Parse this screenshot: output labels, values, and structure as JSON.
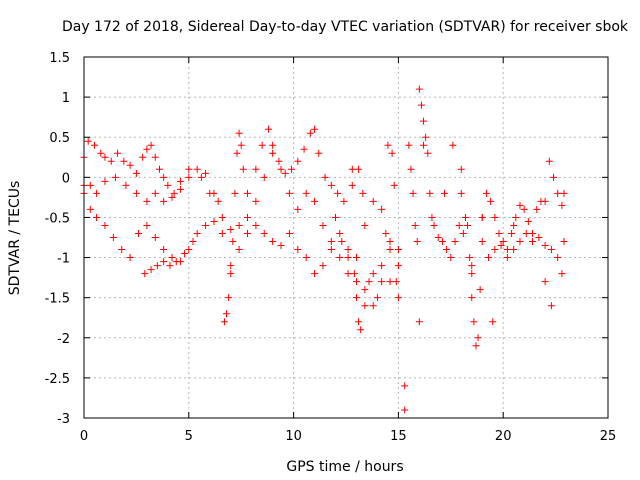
{
  "chart_data": {
    "type": "scatter",
    "title": "Day 172 of 2018, Sidereal Day-to-day VTEC variation (SDTVAR) for receiver sbok",
    "xlabel": "GPS time / hours",
    "ylabel": "SDTVAR / TECUs",
    "xlim": [
      0,
      25
    ],
    "ylim": [
      -3,
      1.5
    ],
    "xticks": [
      0,
      5,
      10,
      15,
      20,
      25
    ],
    "xtick_labels": [
      "0",
      "5",
      "10",
      "15",
      "20",
      "25"
    ],
    "yticks": [
      -3,
      -2.5,
      -2,
      -1.5,
      -1,
      -0.5,
      0,
      0.5,
      1,
      1.5
    ],
    "ytick_labels": [
      "-3",
      "-2.5",
      "-2",
      "-1.5",
      "-1",
      "-0.5",
      "0",
      "0.5",
      "1",
      "1.5"
    ],
    "grid": true,
    "marker": "+",
    "color": "#ff0000",
    "series": [
      {
        "name": "upper track",
        "points": [
          [
            0.0,
            0.25
          ],
          [
            0.2,
            0.45
          ],
          [
            0.5,
            0.4
          ],
          [
            0.8,
            0.3
          ],
          [
            1.0,
            0.25
          ],
          [
            1.3,
            0.2
          ],
          [
            1.6,
            0.3
          ],
          [
            1.9,
            0.2
          ],
          [
            2.2,
            0.15
          ],
          [
            2.5,
            0.05
          ],
          [
            2.8,
            0.25
          ],
          [
            3.0,
            0.35
          ],
          [
            3.2,
            0.4
          ],
          [
            3.4,
            0.25
          ],
          [
            3.6,
            0.1
          ],
          [
            3.8,
            0.0
          ],
          [
            4.0,
            -0.1
          ],
          [
            4.3,
            -0.2
          ],
          [
            4.6,
            -0.05
          ],
          [
            5.0,
            0.1
          ]
        ]
      },
      {
        "name": "middle track",
        "points": [
          [
            0.0,
            -0.2
          ],
          [
            0.3,
            -0.1
          ],
          [
            0.6,
            -0.2
          ],
          [
            1.0,
            -0.05
          ],
          [
            1.5,
            0.0
          ],
          [
            2.0,
            -0.1
          ],
          [
            2.5,
            -0.2
          ],
          [
            3.0,
            -0.3
          ],
          [
            3.4,
            -0.2
          ],
          [
            3.8,
            -0.3
          ],
          [
            4.2,
            -0.25
          ],
          [
            4.6,
            -0.15
          ],
          [
            5.0,
            0.0
          ],
          [
            5.4,
            0.1
          ],
          [
            5.8,
            0.05
          ],
          [
            6.2,
            -0.2
          ],
          [
            6.6,
            -0.5
          ],
          [
            7.0,
            -0.65
          ],
          [
            7.4,
            -0.6
          ],
          [
            7.8,
            -0.5
          ],
          [
            8.2,
            -0.3
          ],
          [
            8.6,
            0.0
          ],
          [
            9.0,
            0.3
          ],
          [
            9.4,
            0.1
          ],
          [
            9.8,
            -0.2
          ],
          [
            10.2,
            -0.4
          ],
          [
            10.6,
            -0.2
          ],
          [
            11.0,
            -0.3
          ],
          [
            11.4,
            -0.6
          ],
          [
            11.8,
            -0.8
          ],
          [
            12.2,
            -0.7
          ],
          [
            12.6,
            -0.9
          ],
          [
            13.0,
            -1.0
          ],
          [
            13.4,
            -0.6
          ],
          [
            13.8,
            -0.3
          ],
          [
            14.2,
            -0.4
          ],
          [
            14.6,
            -0.8
          ],
          [
            15.0,
            -0.9
          ]
        ]
      },
      {
        "name": "lower track",
        "points": [
          [
            0.0,
            -0.1
          ],
          [
            0.3,
            -0.4
          ],
          [
            0.6,
            -0.5
          ],
          [
            1.0,
            -0.6
          ],
          [
            1.4,
            -0.75
          ],
          [
            1.8,
            -0.9
          ],
          [
            2.2,
            -1.0
          ],
          [
            2.6,
            -0.7
          ],
          [
            3.0,
            -0.6
          ],
          [
            3.4,
            -0.75
          ],
          [
            3.8,
            -0.9
          ],
          [
            4.2,
            -1.0
          ],
          [
            4.6,
            -1.05
          ],
          [
            5.0,
            -0.9
          ],
          [
            5.4,
            -0.7
          ],
          [
            5.8,
            -0.6
          ],
          [
            6.2,
            -0.55
          ],
          [
            6.6,
            -0.7
          ],
          [
            7.0,
            -1.1
          ],
          [
            7.4,
            -0.9
          ],
          [
            7.8,
            -0.7
          ],
          [
            8.2,
            -0.6
          ],
          [
            8.6,
            -0.7
          ],
          [
            9.0,
            -0.8
          ],
          [
            9.4,
            -0.85
          ],
          [
            9.8,
            -0.7
          ],
          [
            10.2,
            -0.9
          ],
          [
            10.6,
            -1.0
          ],
          [
            11.0,
            -1.2
          ],
          [
            11.4,
            -1.1
          ],
          [
            11.8,
            -0.9
          ],
          [
            12.2,
            -1.0
          ],
          [
            12.6,
            -1.2
          ],
          [
            13.0,
            -1.3
          ],
          [
            13.4,
            -1.4
          ],
          [
            13.8,
            -1.2
          ],
          [
            14.2,
            -1.3
          ],
          [
            14.6,
            -1.3
          ],
          [
            15.0,
            -1.1
          ]
        ]
      },
      {
        "name": "segment 3h-5h lower",
        "points": [
          [
            2.9,
            -1.2
          ],
          [
            3.2,
            -1.15
          ],
          [
            3.5,
            -1.1
          ],
          [
            3.8,
            -1.05
          ],
          [
            4.1,
            -1.1
          ],
          [
            4.4,
            -1.05
          ],
          [
            4.8,
            -0.95
          ],
          [
            5.2,
            -0.8
          ]
        ]
      },
      {
        "name": "segment 7h excursion",
        "points": [
          [
            6.7,
            -1.8
          ],
          [
            6.8,
            -1.7
          ],
          [
            6.9,
            -1.5
          ],
          [
            7.0,
            -1.2
          ],
          [
            7.1,
            -0.8
          ],
          [
            7.2,
            -0.2
          ],
          [
            7.3,
            0.3
          ],
          [
            7.4,
            0.55
          ],
          [
            7.5,
            0.4
          ],
          [
            7.6,
            0.1
          ]
        ]
      },
      {
        "name": "segment 8-11h upper",
        "points": [
          [
            5.6,
            0.0
          ],
          [
            6.0,
            -0.2
          ],
          [
            6.4,
            -0.3
          ],
          [
            7.8,
            -0.2
          ],
          [
            8.2,
            0.1
          ],
          [
            8.5,
            0.4
          ],
          [
            8.8,
            0.6
          ],
          [
            9.0,
            0.4
          ],
          [
            9.3,
            0.2
          ],
          [
            9.6,
            0.05
          ],
          [
            9.9,
            0.1
          ],
          [
            10.2,
            0.2
          ],
          [
            10.5,
            0.35
          ],
          [
            10.8,
            0.55
          ],
          [
            11.0,
            0.6
          ],
          [
            11.2,
            0.3
          ],
          [
            11.5,
            0.0
          ],
          [
            11.8,
            -0.1
          ],
          [
            12.1,
            -0.2
          ],
          [
            12.4,
            -0.3
          ],
          [
            12.8,
            -0.1
          ],
          [
            13.1,
            0.1
          ],
          [
            13.3,
            -0.2
          ]
        ]
      },
      {
        "name": "segment 12-15h cluster",
        "points": [
          [
            12.0,
            -0.5
          ],
          [
            12.3,
            -0.8
          ],
          [
            12.6,
            -1.0
          ],
          [
            12.9,
            -1.2
          ],
          [
            13.0,
            -1.5
          ],
          [
            13.1,
            -1.8
          ],
          [
            13.2,
            -1.9
          ],
          [
            13.4,
            -1.6
          ],
          [
            13.6,
            -1.3
          ],
          [
            13.8,
            -1.6
          ],
          [
            14.0,
            -1.5
          ],
          [
            14.2,
            -1.1
          ],
          [
            14.4,
            -0.7
          ],
          [
            14.6,
            -0.9
          ],
          [
            14.7,
            0.3
          ],
          [
            14.8,
            -0.1
          ],
          [
            14.9,
            -1.3
          ],
          [
            15.0,
            -1.5
          ]
        ]
      },
      {
        "name": "segment 15-17h",
        "points": [
          [
            15.5,
            0.4
          ],
          [
            15.6,
            0.1
          ],
          [
            15.7,
            -0.2
          ],
          [
            15.8,
            -0.6
          ],
          [
            15.9,
            -0.8
          ],
          [
            16.0,
            1.1
          ],
          [
            16.1,
            0.9
          ],
          [
            16.2,
            0.7
          ],
          [
            16.3,
            0.5
          ],
          [
            16.4,
            0.3
          ],
          [
            16.5,
            -0.2
          ],
          [
            16.6,
            -0.5
          ],
          [
            16.7,
            -0.6
          ],
          [
            16.9,
            -0.75
          ],
          [
            17.1,
            -0.8
          ],
          [
            17.3,
            -0.9
          ],
          [
            17.5,
            -1.0
          ],
          [
            17.7,
            -0.8
          ],
          [
            17.9,
            -0.6
          ],
          [
            18.1,
            -0.7
          ],
          [
            18.3,
            -0.6
          ],
          [
            18.5,
            -1.1
          ]
        ]
      },
      {
        "name": "segment 18-23h",
        "points": [
          [
            18.0,
            -0.2
          ],
          [
            18.2,
            -0.5
          ],
          [
            18.4,
            -1.0
          ],
          [
            18.5,
            -1.5
          ],
          [
            18.6,
            -1.8
          ],
          [
            18.7,
            -2.1
          ],
          [
            18.8,
            -2.0
          ],
          [
            18.9,
            -1.4
          ],
          [
            19.0,
            -0.5
          ],
          [
            19.2,
            -0.2
          ],
          [
            19.4,
            -0.3
          ],
          [
            19.6,
            -0.5
          ],
          [
            19.8,
            -0.7
          ],
          [
            20.0,
            -0.8
          ],
          [
            20.2,
            -0.9
          ],
          [
            20.4,
            -0.7
          ],
          [
            20.6,
            -0.5
          ],
          [
            20.8,
            -0.35
          ],
          [
            21.0,
            -0.4
          ],
          [
            21.2,
            -0.55
          ],
          [
            21.4,
            -0.7
          ],
          [
            21.6,
            -0.4
          ],
          [
            21.8,
            -0.3
          ],
          [
            22.0,
            -0.3
          ],
          [
            22.2,
            0.2
          ],
          [
            22.4,
            0.0
          ],
          [
            22.6,
            -0.2
          ],
          [
            22.8,
            -0.35
          ],
          [
            22.9,
            -0.2
          ]
        ]
      },
      {
        "name": "segment 19-23h lower",
        "points": [
          [
            19.0,
            -0.8
          ],
          [
            19.3,
            -1.0
          ],
          [
            19.6,
            -0.9
          ],
          [
            19.9,
            -0.85
          ],
          [
            20.2,
            -1.0
          ],
          [
            20.5,
            -0.9
          ],
          [
            20.8,
            -0.8
          ],
          [
            21.1,
            -0.7
          ],
          [
            21.4,
            -0.8
          ],
          [
            21.7,
            -0.75
          ],
          [
            22.0,
            -0.85
          ],
          [
            22.3,
            -0.9
          ],
          [
            22.6,
            -1.0
          ],
          [
            22.8,
            -1.2
          ],
          [
            22.9,
            -0.8
          ]
        ]
      },
      {
        "name": "isolated points",
        "points": [
          [
            15.3,
            -2.6
          ],
          [
            15.3,
            -2.9
          ],
          [
            16.2,
            0.4
          ],
          [
            16.0,
            -1.8
          ],
          [
            17.6,
            0.4
          ],
          [
            18.0,
            0.1
          ],
          [
            19.0,
            -0.5
          ],
          [
            19.5,
            -1.8
          ],
          [
            20.5,
            -0.6
          ],
          [
            22.0,
            -1.3
          ],
          [
            22.3,
            -1.6
          ],
          [
            18.5,
            -1.2
          ],
          [
            17.2,
            -0.2
          ],
          [
            14.5,
            0.4
          ],
          [
            12.8,
            0.1
          ]
        ]
      }
    ]
  }
}
